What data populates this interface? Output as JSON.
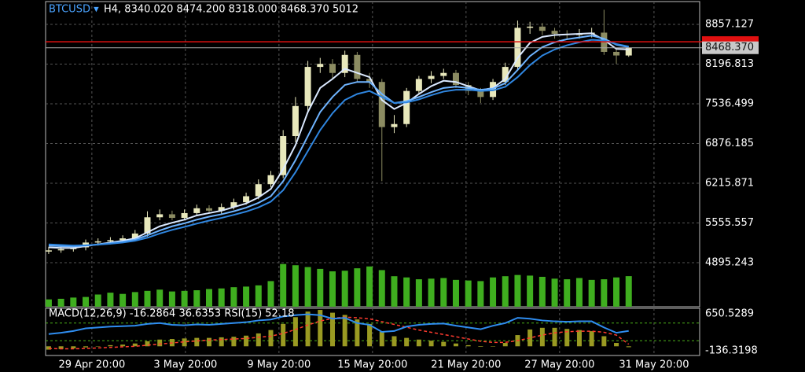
{
  "chart_data": {
    "type": "candlestick",
    "symbol": "BTCUSD ▾",
    "info": "H4, 8340.020 8474.200 8318.000 8468.370 5012",
    "indicator_label": "MACD(12,26,9) -16.2864 36.6353 RSI(15) 52.18",
    "xlim": [
      -0.25,
      52.75
    ],
    "xticks": [
      {
        "value": 3.5,
        "label": "29 Apr 20:00"
      },
      {
        "value": 11.08,
        "label": "3 May 20:00"
      },
      {
        "value": 18.66,
        "label": "9 May 20:00"
      },
      {
        "value": 26.24,
        "label": "15 May 20:00"
      },
      {
        "value": 33.82,
        "label": "21 May 20:00"
      },
      {
        "value": 41.4,
        "label": "27 May 20:00"
      },
      {
        "value": 49.05,
        "label": "31 May 20:00"
      }
    ],
    "ylim": [
      4163,
      9236.3
    ],
    "yticks": [
      8857.127,
      8196.813,
      7536.499,
      6876.185,
      6215.871,
      5555.557,
      4895.243
    ],
    "grid": true,
    "bull_color": "#e8e8bc",
    "bear_color": "#8c8c62",
    "open": [
      5080,
      5100,
      5120,
      5150,
      5230,
      5250,
      5270,
      5300,
      5380,
      5650,
      5700,
      5640,
      5720,
      5800,
      5760,
      5820,
      5900,
      6000,
      6200,
      6350,
      7000,
      7500,
      8150,
      8200,
      8050,
      8350,
      7950,
      7900,
      7150,
      7200,
      7750,
      7950,
      8000,
      8050,
      7850,
      7750,
      7650,
      7900,
      8150,
      8800,
      8820,
      8750,
      8700,
      8680,
      8700,
      8720,
      8400,
      8340.02
    ],
    "high": [
      5160,
      5170,
      5190,
      5280,
      5300,
      5320,
      5350,
      5440,
      5750,
      5780,
      5760,
      5780,
      5860,
      5850,
      5880,
      5960,
      6060,
      6280,
      6420,
      7100,
      7650,
      8250,
      8300,
      8280,
      8420,
      8400,
      8050,
      7950,
      7350,
      7800,
      8000,
      8080,
      8120,
      8100,
      7900,
      7800,
      7950,
      8220,
      8920,
      8900,
      8880,
      8800,
      8760,
      8780,
      8800,
      9100,
      8450,
      8474.2
    ],
    "low": [
      5040,
      5060,
      5080,
      5100,
      5180,
      5200,
      5230,
      5260,
      5330,
      5600,
      5600,
      5600,
      5680,
      5720,
      5710,
      5780,
      5860,
      5950,
      6150,
      6300,
      6900,
      7400,
      8050,
      7950,
      7980,
      7900,
      7800,
      6250,
      7050,
      7150,
      7700,
      7880,
      7950,
      7800,
      7680,
      7550,
      7600,
      7850,
      8100,
      8700,
      8680,
      8620,
      8600,
      8620,
      8640,
      8350,
      8200,
      8318
    ],
    "close": [
      5100,
      5120,
      5150,
      5230,
      5250,
      5270,
      5300,
      5380,
      5650,
      5700,
      5640,
      5720,
      5800,
      5760,
      5820,
      5900,
      6000,
      6200,
      6350,
      7000,
      7500,
      8150,
      8200,
      8050,
      8350,
      7950,
      7900,
      7150,
      7200,
      7750,
      7950,
      8000,
      8050,
      7850,
      7750,
      7650,
      7900,
      8150,
      8800,
      8820,
      8750,
      8700,
      8680,
      8700,
      8720,
      8400,
      8340,
      8468.37
    ],
    "series": [
      {
        "color": "#dbe9ff",
        "values": [
          5150,
          5140,
          5140,
          5170,
          5200,
          5230,
          5260,
          5300,
          5400,
          5500,
          5560,
          5610,
          5680,
          5720,
          5760,
          5820,
          5880,
          5980,
          6120,
          6450,
          6850,
          7400,
          7800,
          7950,
          8120,
          8050,
          7980,
          7600,
          7450,
          7550,
          7700,
          7830,
          7920,
          7900,
          7830,
          7760,
          7800,
          7950,
          8300,
          8550,
          8650,
          8680,
          8690,
          8700,
          8710,
          8600,
          8450,
          8440
        ]
      },
      {
        "color": "#6fb4ff",
        "values": [
          5180,
          5170,
          5165,
          5180,
          5200,
          5220,
          5245,
          5280,
          5350,
          5430,
          5500,
          5550,
          5610,
          5660,
          5700,
          5750,
          5810,
          5890,
          6000,
          6250,
          6600,
          7000,
          7400,
          7650,
          7850,
          7900,
          7900,
          7700,
          7550,
          7580,
          7650,
          7730,
          7800,
          7820,
          7800,
          7770,
          7790,
          7880,
          8100,
          8330,
          8480,
          8560,
          8610,
          8640,
          8670,
          8620,
          8520,
          8480
        ]
      },
      {
        "color": "#2f86e0",
        "values": [
          5200,
          5190,
          5180,
          5185,
          5195,
          5210,
          5230,
          5260,
          5310,
          5380,
          5440,
          5490,
          5545,
          5595,
          5640,
          5690,
          5745,
          5815,
          5910,
          6100,
          6400,
          6750,
          7100,
          7380,
          7600,
          7700,
          7750,
          7650,
          7550,
          7560,
          7610,
          7680,
          7740,
          7770,
          7770,
          7750,
          7760,
          7820,
          7980,
          8180,
          8340,
          8440,
          8510,
          8560,
          8600,
          8590,
          8530,
          8490
        ]
      }
    ],
    "volume": [
      1200,
      1300,
      1500,
      1600,
      2000,
      2300,
      2100,
      2400,
      2600,
      2800,
      2500,
      2600,
      2700,
      2900,
      3000,
      3200,
      3300,
      3500,
      4200,
      7000,
      6800,
      6500,
      6200,
      5800,
      5900,
      6300,
      6600,
      6000,
      5000,
      4800,
      4500,
      4600,
      4700,
      4400,
      4300,
      4200,
      4800,
      5000,
      5200,
      5100,
      4900,
      4600,
      4500,
      4700,
      4400,
      4500,
      4800,
      5012
    ],
    "volume_ylim": [
      0,
      50000
    ],
    "volume_color": "#3fae1f",
    "price_line": {
      "value": 8468.37,
      "label": "8468.370"
    },
    "bid_line": 8568,
    "bid_color": "#e01010",
    "sub_ylim": [
      -136.3198,
      650.5289
    ],
    "sub_yticks": [
      650.5289,
      -136.3198
    ],
    "macd": [
      -60,
      -50,
      -40,
      -20,
      0,
      20,
      30,
      50,
      90,
      120,
      130,
      140,
      150,
      150,
      160,
      170,
      190,
      230,
      290,
      400,
      520,
      620,
      650,
      600,
      560,
      480,
      400,
      260,
      180,
      150,
      120,
      100,
      80,
      50,
      20,
      -10,
      0,
      60,
      200,
      300,
      330,
      330,
      310,
      290,
      270,
      180,
      60,
      -16.2864
    ],
    "macd_color": "#9a9a22",
    "signal": [
      -40,
      -45,
      -45,
      -40,
      -30,
      -20,
      -10,
      0,
      20,
      40,
      60,
      80,
      95,
      110,
      120,
      130,
      140,
      160,
      180,
      230,
      300,
      380,
      450,
      500,
      520,
      510,
      490,
      440,
      390,
      340,
      290,
      250,
      210,
      170,
      130,
      90,
      70,
      70,
      100,
      150,
      200,
      240,
      260,
      270,
      270,
      250,
      200,
      36.6353
    ],
    "signal_color": "#ff3b2f",
    "rsi": [
      45,
      48,
      52,
      58,
      60,
      62,
      63,
      64,
      68,
      70,
      66,
      65,
      67,
      66,
      68,
      70,
      72,
      76,
      78,
      85,
      88,
      90,
      88,
      80,
      82,
      70,
      66,
      50,
      52,
      62,
      66,
      68,
      69,
      64,
      60,
      56,
      64,
      70,
      82,
      80,
      76,
      74,
      73,
      74,
      74,
      60,
      48,
      52.18
    ],
    "rsi_color": "#2f8df0",
    "rsi_ylim": [
      0,
      100
    ],
    "rsi_levels": [
      70,
      30
    ],
    "rsi_level_color": "#4caf1a"
  }
}
